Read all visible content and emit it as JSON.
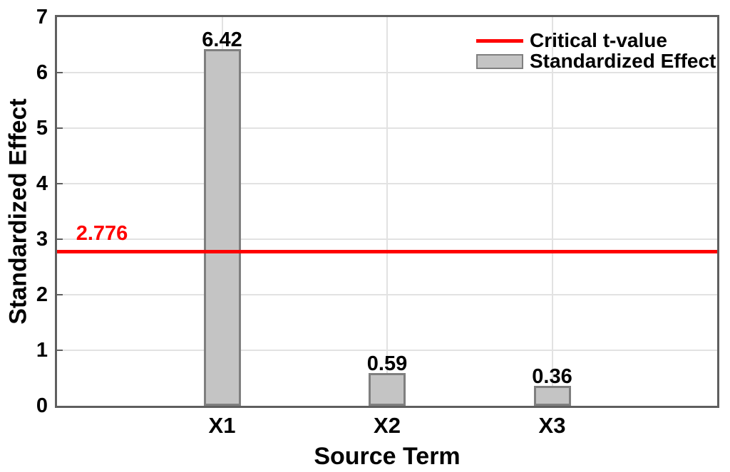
{
  "chart_data": {
    "type": "bar",
    "title": "",
    "xlabel": "Source Term",
    "ylabel": "Standardized Effect",
    "categories": [
      "X1",
      "X2",
      "X3"
    ],
    "values": [
      6.42,
      0.59,
      0.36
    ],
    "bar_labels": [
      "6.42",
      "0.59",
      "0.36"
    ],
    "ylim": [
      0,
      7
    ],
    "yticks": [
      0,
      1,
      2,
      3,
      4,
      5,
      6,
      7
    ],
    "grid": true,
    "legend_position": "top-right",
    "reference_line": {
      "value": 2.776,
      "label": "2.776",
      "color": "#ff0000"
    },
    "legend": {
      "entries": [
        {
          "label": "Critical t-value",
          "type": "line",
          "color": "#ff0000"
        },
        {
          "label": "Standardized Effect",
          "type": "box",
          "fill": "#c4c4c4",
          "edge": "#7f7f7f"
        }
      ]
    },
    "colors": {
      "bar_fill": "#c4c4c4",
      "bar_edge": "#7f7f7f",
      "grid": "#e2e2e2",
      "frame": "#5f5f5f",
      "reference": "#ff0000",
      "text": "#000000"
    }
  }
}
